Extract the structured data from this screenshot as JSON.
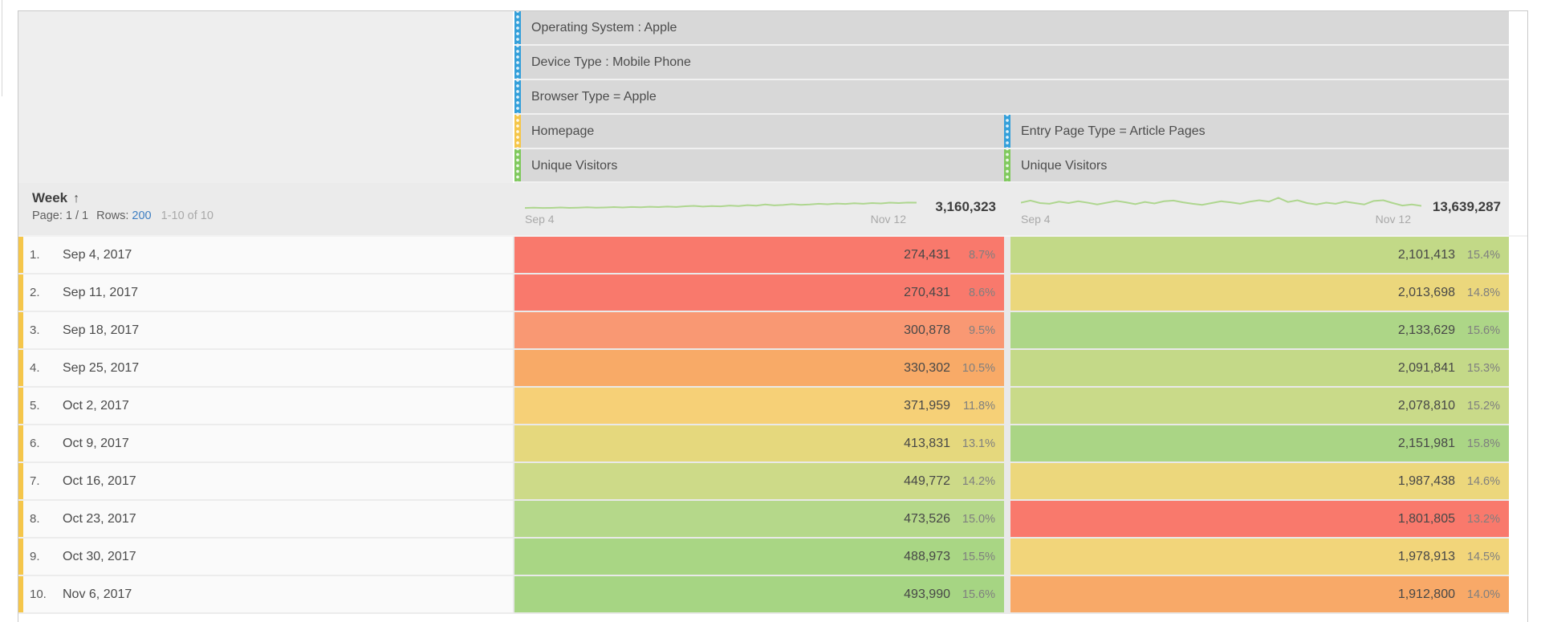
{
  "colors": {
    "strip_blue": "#35a0da",
    "strip_yellow": "#f5c64a",
    "strip_green": "#80c95e",
    "sparkline": "#aed68f",
    "header_bg": "#d8d8d8",
    "week_bg": "#ebebeb",
    "link_blue": "#3d7ec2"
  },
  "header": {
    "segments": [
      "Operating System : Apple",
      "Device Type : Mobile Phone",
      "Browser Type = Apple"
    ],
    "col_headers": [
      {
        "item": "Homepage",
        "metric": "Unique Visitors"
      },
      {
        "item": "Entry Page Type = Article Pages",
        "metric": "Unique Visitors"
      }
    ]
  },
  "week_header": {
    "dimension": "Week",
    "sort_icon": "↑",
    "page_label": "Page:",
    "page_value": "1 / 1",
    "rows_label": "Rows:",
    "rows_value": "200",
    "range_text": "1-10 of 10",
    "col1": {
      "start": "Sep 4",
      "end": "Nov 12",
      "total": "3,160,323"
    },
    "col2": {
      "start": "Sep 4",
      "end": "Nov 12",
      "total": "13,639,287"
    }
  },
  "rows": [
    {
      "idx": "1.",
      "date": "Sep 4, 2017",
      "v1": "274,431",
      "p1": "8.7%",
      "c1": "#f9796c",
      "v2": "2,101,413",
      "p2": "15.4%",
      "c2": "#c2d987"
    },
    {
      "idx": "2.",
      "date": "Sep 11, 2017",
      "v1": "270,431",
      "p1": "8.6%",
      "c1": "#f9796c",
      "v2": "2,013,698",
      "p2": "14.8%",
      "c2": "#ebd77c"
    },
    {
      "idx": "3.",
      "date": "Sep 18, 2017",
      "v1": "300,878",
      "p1": "9.5%",
      "c1": "#f99873",
      "v2": "2,133,629",
      "p2": "15.6%",
      "c2": "#add687"
    },
    {
      "idx": "4.",
      "date": "Sep 25, 2017",
      "v1": "330,302",
      "p1": "10.5%",
      "c1": "#f8aa67",
      "v2": "2,091,841",
      "p2": "15.3%",
      "c2": "#c4d988"
    },
    {
      "idx": "5.",
      "date": "Oct 2, 2017",
      "v1": "371,959",
      "p1": "11.8%",
      "c1": "#f6d077",
      "v2": "2,078,810",
      "p2": "15.2%",
      "c2": "#c9da89"
    },
    {
      "idx": "6.",
      "date": "Oct 9, 2017",
      "v1": "413,831",
      "p1": "13.1%",
      "c1": "#e5d87d",
      "v2": "2,151,981",
      "p2": "15.8%",
      "c2": "#aad585"
    },
    {
      "idx": "7.",
      "date": "Oct 16, 2017",
      "v1": "449,772",
      "p1": "14.2%",
      "c1": "#cdda88",
      "v2": "1,987,438",
      "p2": "14.6%",
      "c2": "#ecd77c"
    },
    {
      "idx": "8.",
      "date": "Oct 23, 2017",
      "v1": "473,526",
      "p1": "15.0%",
      "c1": "#b5d88a",
      "v2": "1,801,805",
      "p2": "13.2%",
      "c2": "#f9796c"
    },
    {
      "idx": "9.",
      "date": "Oct 30, 2017",
      "v1": "488,973",
      "p1": "15.5%",
      "c1": "#a9d684",
      "v2": "1,978,913",
      "p2": "14.5%",
      "c2": "#f2d57a"
    },
    {
      "idx": "10.",
      "date": "Nov 6, 2017",
      "v1": "493,990",
      "p1": "15.6%",
      "c1": "#a6d583",
      "v2": "1,912,800",
      "p2": "14.0%",
      "c2": "#f8a968"
    }
  ],
  "chart_data": {
    "type": "table",
    "title": "Unique Visitors by Week — Homepage vs Entry Page Type = Article Pages",
    "categories": [
      "Sep 4, 2017",
      "Sep 11, 2017",
      "Sep 18, 2017",
      "Sep 25, 2017",
      "Oct 2, 2017",
      "Oct 9, 2017",
      "Oct 16, 2017",
      "Oct 23, 2017",
      "Oct 30, 2017",
      "Nov 6, 2017"
    ],
    "series": [
      {
        "name": "Homepage — Unique Visitors",
        "values": [
          274431,
          270431,
          300878,
          330302,
          371959,
          413831,
          449772,
          473526,
          488973,
          493990
        ],
        "percent_of_total": [
          "8.7%",
          "8.6%",
          "9.5%",
          "10.5%",
          "11.8%",
          "13.1%",
          "14.2%",
          "15.0%",
          "15.5%",
          "15.6%"
        ],
        "total": 3160323
      },
      {
        "name": "Entry Page Type = Article Pages — Unique Visitors",
        "values": [
          2101413,
          2013698,
          2133629,
          2091841,
          2078810,
          2151981,
          1987438,
          1801805,
          1978913,
          1912800
        ],
        "percent_of_total": [
          "15.4%",
          "14.8%",
          "15.6%",
          "15.3%",
          "15.2%",
          "15.8%",
          "14.6%",
          "13.2%",
          "14.5%",
          "14.0%"
        ],
        "total": 13639287
      }
    ],
    "sparklines": {
      "x_range": [
        "Sep 4",
        "Nov 12"
      ],
      "homepage": [
        0.22,
        0.24,
        0.22,
        0.23,
        0.25,
        0.23,
        0.24,
        0.26,
        0.24,
        0.25,
        0.27,
        0.25,
        0.28,
        0.26,
        0.29,
        0.27,
        0.3,
        0.28,
        0.32,
        0.34,
        0.3,
        0.33,
        0.31,
        0.36,
        0.33,
        0.38,
        0.35,
        0.42,
        0.37,
        0.39,
        0.44,
        0.4,
        0.42,
        0.46,
        0.43,
        0.47,
        0.45,
        0.49,
        0.46,
        0.5,
        0.48,
        0.52,
        0.5,
        0.53,
        0.52
      ],
      "article_pages": [
        0.52,
        0.64,
        0.5,
        0.46,
        0.58,
        0.5,
        0.6,
        0.52,
        0.42,
        0.52,
        0.62,
        0.54,
        0.44,
        0.56,
        0.48,
        0.6,
        0.64,
        0.54,
        0.46,
        0.4,
        0.5,
        0.6,
        0.54,
        0.46,
        0.58,
        0.66,
        0.58,
        0.8,
        0.56,
        0.66,
        0.5,
        0.42,
        0.52,
        0.46,
        0.58,
        0.5,
        0.42,
        0.62,
        0.66,
        0.5,
        0.36,
        0.42,
        0.34
      ]
    }
  }
}
